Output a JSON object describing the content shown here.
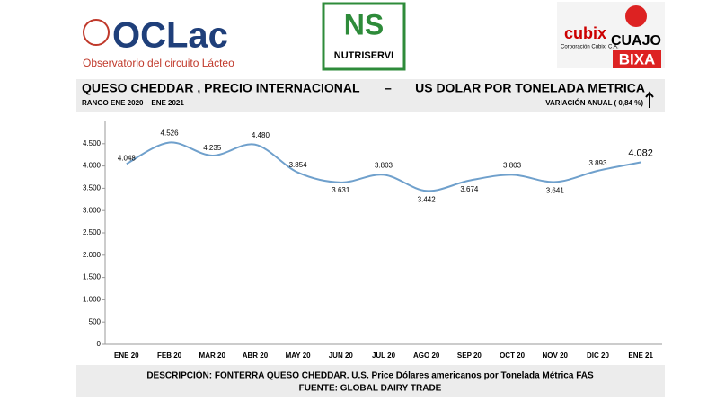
{
  "logos": {
    "oclac": "OCLac",
    "oclac_sub": "Observatorio del circuito Lácteo",
    "ns": "NS",
    "nutriservi": "NUTRISERVI",
    "cubix": "cubix",
    "cubix_sub": "Corporación Cubix, C.A.",
    "cuajo": "CUAJO",
    "bixa": "BIXA"
  },
  "chart_data": {
    "type": "line",
    "title": "QUESO CHEDDAR , PRECIO INTERNACIONAL",
    "title_sep": "–",
    "title_right": "US DOLAR POR TONELADA METRICA",
    "subtitle": "RANGO ENE 2020 – ENE 2021",
    "annotation": "VARIACIÓN ANUAL ( 0,84 %)",
    "description": "DESCRIPCIÓN: FONTERRA QUESO CHEDDAR. U.S. Price Dólares americanos por Tonelada Métrica FAS",
    "source": "FUENTE: GLOBAL DAIRY TRADE",
    "categories": [
      "ENE 20",
      "FEB 20",
      "MAR 20",
      "ABR 20",
      "MAY 20",
      "JUN 20",
      "JUL 20",
      "AGO 20",
      "SEP 20",
      "OCT 20",
      "NOV 20",
      "DIC 20",
      "ENE 21"
    ],
    "series": [
      {
        "name": "Queso Cheddar",
        "color": "#6fa0cc",
        "values": [
          4048,
          4526,
          4235,
          4480,
          3854,
          3631,
          3803,
          3442,
          3674,
          3803,
          3641,
          3893,
          4082
        ],
        "value_labels": [
          "4.048",
          "4.526",
          "4.235",
          "4.480",
          "3.854",
          "3.631",
          "3.803",
          "3.442",
          "3.674",
          "3.803",
          "3.641",
          "3.893",
          "4.082"
        ]
      }
    ],
    "ylim": [
      0,
      5000
    ],
    "yticks": [
      0,
      500,
      {
        "value": 1000,
        "label": "1.000"
      },
      {
        "value": 1500,
        "label": "1.500"
      },
      {
        "value": 2000,
        "label": "2.000"
      },
      {
        "value": 2500,
        "label": "2.500"
      },
      {
        "value": 3000,
        "label": "3.000"
      },
      {
        "value": 3500,
        "label": "3.500"
      },
      {
        "value": 4000,
        "label": "4.000"
      },
      {
        "value": 4500,
        "label": "4.500"
      }
    ]
  }
}
